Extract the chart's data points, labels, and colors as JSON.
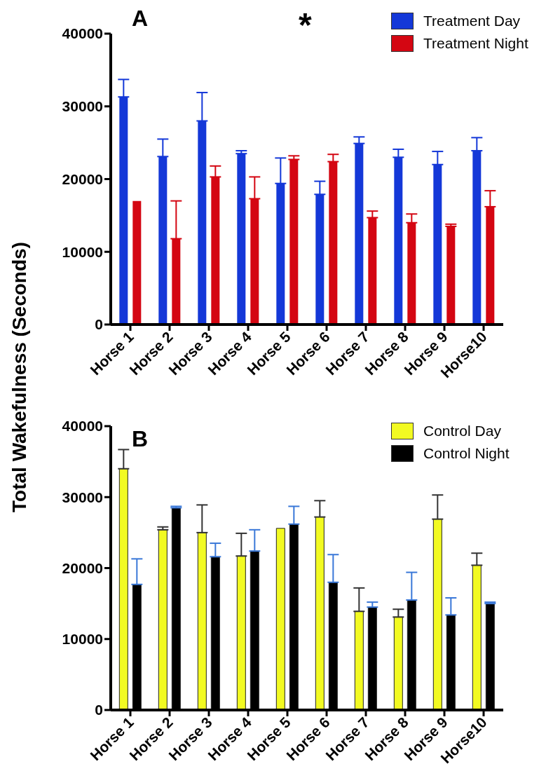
{
  "chart_data": [
    {
      "type": "bar",
      "title": "A",
      "ylabel": "Total Wakefulness (Seconds)",
      "annotations": [
        "*"
      ],
      "categories": [
        "Horse 1",
        "Horse 2",
        "Horse 3",
        "Horse 4",
        "Horse 5",
        "Horse 6",
        "Horse 7",
        "Horse 8",
        "Horse 9",
        "Horse10"
      ],
      "ylim": [
        0,
        40000
      ],
      "yticks": [
        0,
        10000,
        20000,
        30000,
        40000
      ],
      "legend": "top right",
      "series": [
        {
          "name": "Treatment Day",
          "color": "#1438d8",
          "values": [
            31300,
            23100,
            28000,
            23500,
            19400,
            17900,
            24900,
            23000,
            22000,
            23900
          ],
          "errors": [
            [
              31300,
              33700
            ],
            [
              23100,
              25500
            ],
            [
              28000,
              31900
            ],
            [
              23500,
              23900
            ],
            [
              19400,
              22900
            ],
            [
              17900,
              19700
            ],
            [
              24900,
              25800
            ],
            [
              23000,
              24100
            ],
            [
              22000,
              23800
            ],
            [
              23900,
              25700
            ]
          ]
        },
        {
          "name": "Treatment Night",
          "color": "#d40612",
          "values": [
            17000,
            11800,
            20300,
            17300,
            22700,
            22400,
            14700,
            14000,
            13500,
            16200
          ],
          "errors": [
            null,
            [
              11800,
              17000
            ],
            [
              20300,
              21800
            ],
            [
              17300,
              20300
            ],
            [
              22700,
              23200
            ],
            [
              22400,
              23400
            ],
            [
              14700,
              15600
            ],
            [
              14000,
              15200
            ],
            [
              13500,
              13800
            ],
            [
              16200,
              18400
            ]
          ]
        }
      ]
    },
    {
      "type": "bar",
      "title": "B",
      "categories": [
        "Horse 1",
        "Horse 2",
        "Horse 3",
        "Horse 4",
        "Horse 5",
        "Horse 6",
        "Horse 7",
        "Horse 8",
        "Horse 9",
        "Horse10"
      ],
      "ylim": [
        0,
        40000
      ],
      "yticks": [
        0,
        10000,
        20000,
        30000,
        40000
      ],
      "legend": "top right",
      "series": [
        {
          "name": "Control Day",
          "color": "#f2fa22",
          "values": [
            34000,
            25400,
            25000,
            21700,
            25600,
            27200,
            13900,
            13100,
            26900,
            20400
          ],
          "errors": [
            [
              34000,
              36700
            ],
            [
              25400,
              25800
            ],
            [
              25000,
              28900
            ],
            [
              21700,
              24900
            ],
            null,
            [
              27200,
              29500
            ],
            [
              13900,
              17200
            ],
            [
              13100,
              14200
            ],
            [
              26900,
              30300
            ],
            [
              20400,
              22100
            ]
          ]
        },
        {
          "name": "Control Night",
          "color": "#000000",
          "values": [
            17700,
            28500,
            21600,
            22400,
            26200,
            18000,
            14500,
            15500,
            13400,
            15000
          ],
          "errors": [
            [
              17700,
              21300
            ],
            [
              28500,
              28700
            ],
            [
              21600,
              23500
            ],
            [
              22400,
              25400
            ],
            [
              26200,
              28700
            ],
            [
              18000,
              21900
            ],
            [
              14500,
              15200
            ],
            [
              15500,
              19400
            ],
            [
              13400,
              15800
            ],
            [
              15000,
              15200
            ]
          ]
        }
      ]
    }
  ]
}
